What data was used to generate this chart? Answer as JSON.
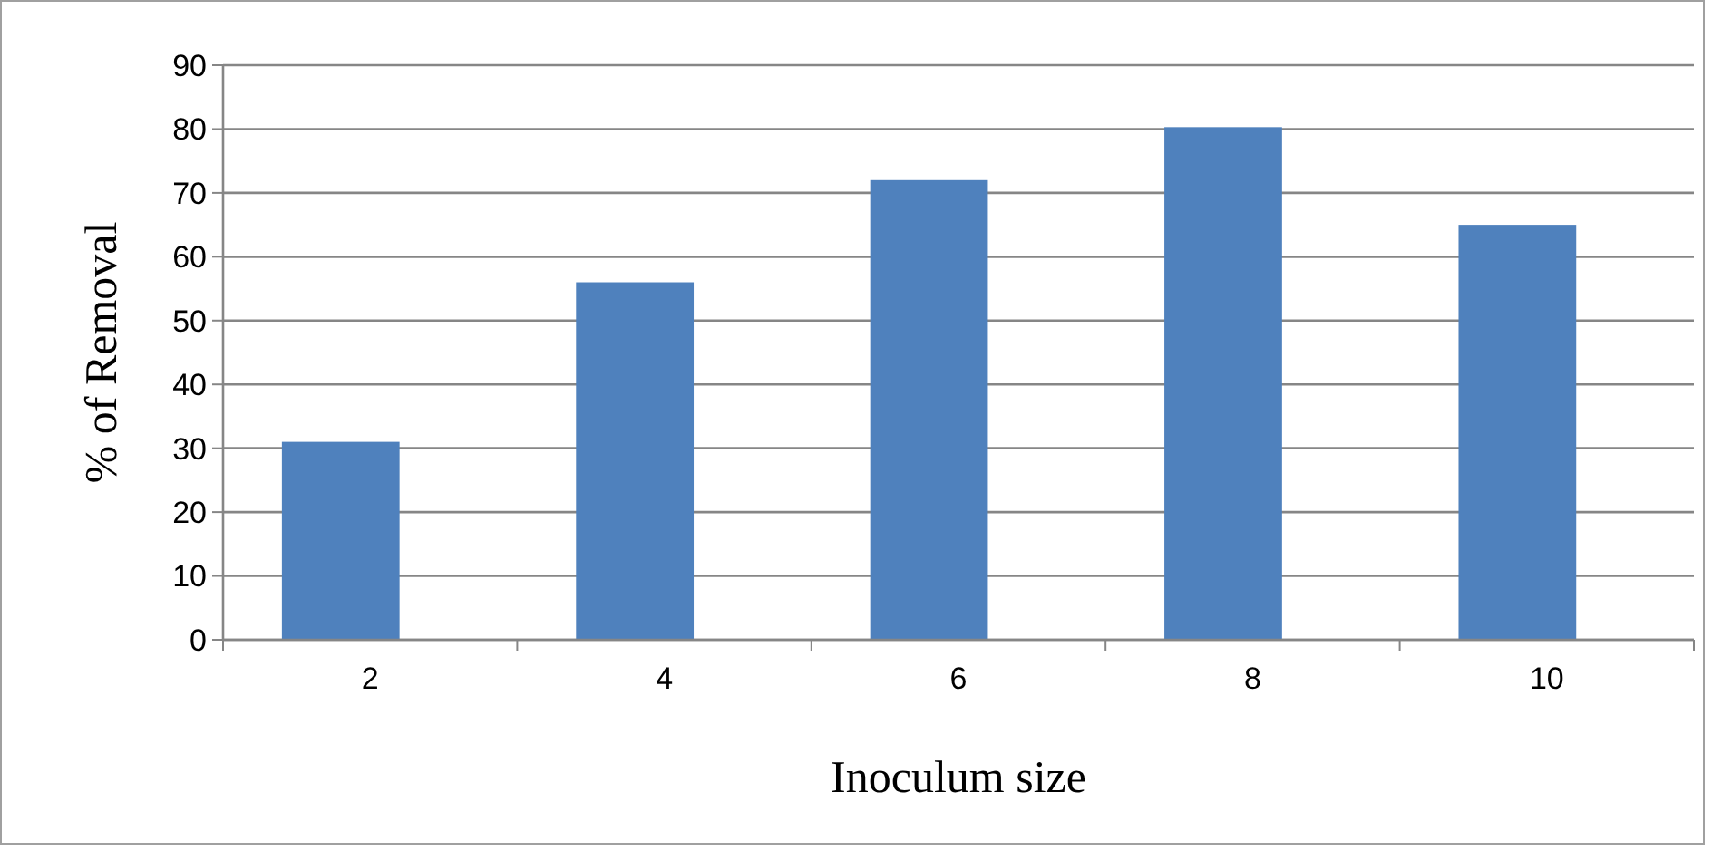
{
  "chart_data": {
    "type": "bar",
    "xlabel": "Inoculum size",
    "ylabel": "% of Removal",
    "categories": [
      "2",
      "4",
      "6",
      "8",
      "10"
    ],
    "values": [
      31,
      56,
      72,
      80.3,
      65
    ],
    "color": "#4f81bd",
    "ylim": [
      0,
      90
    ],
    "yticks": [
      0,
      10,
      20,
      30,
      40,
      50,
      60,
      70,
      80,
      90
    ],
    "grid": "y"
  }
}
